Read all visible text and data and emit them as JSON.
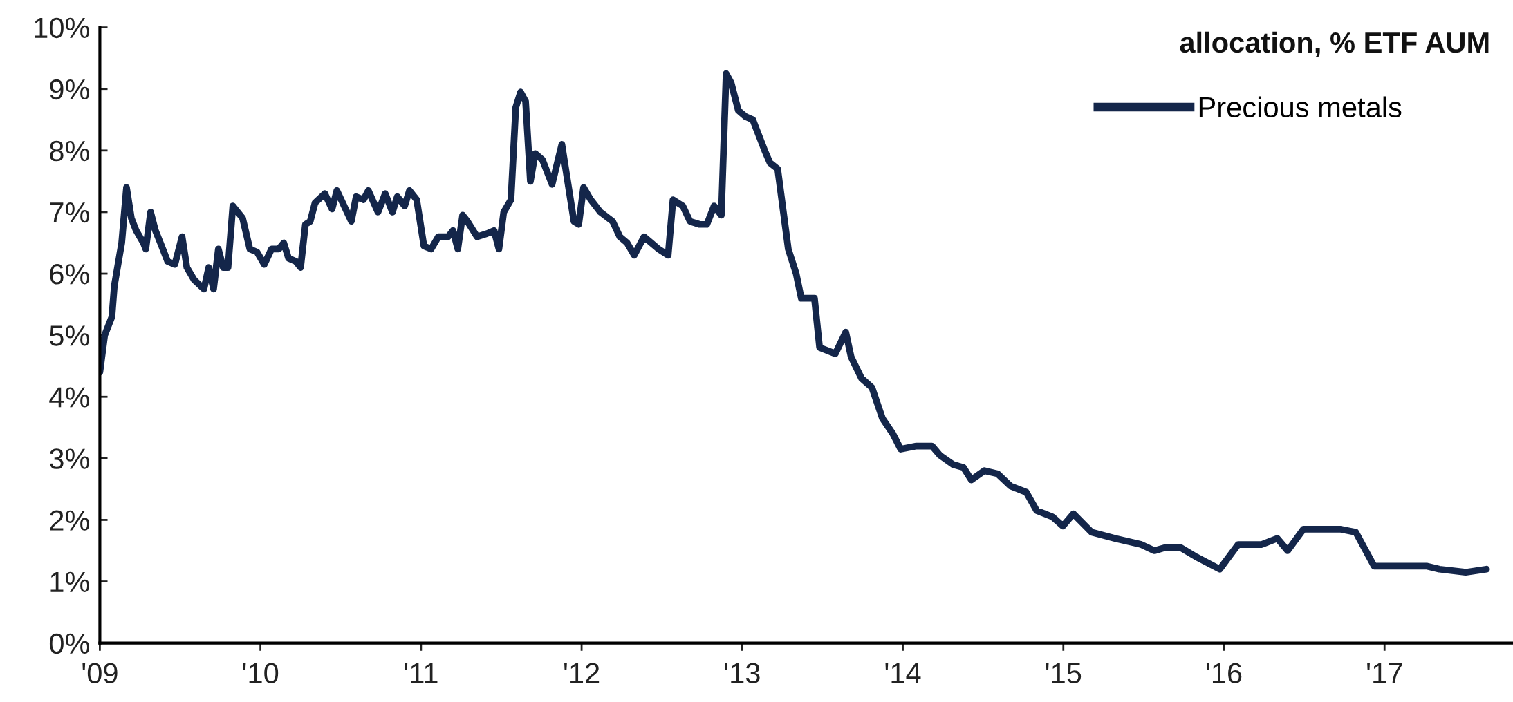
{
  "chart_data": {
    "type": "line",
    "title": "allocation, % ETF AUM",
    "xlim": [
      2009,
      2017.8
    ],
    "xticks": [
      {
        "value": 2009,
        "label": "'09"
      },
      {
        "value": 2010,
        "label": "'10"
      },
      {
        "value": 2011,
        "label": "'11"
      },
      {
        "value": 2012,
        "label": "'12"
      },
      {
        "value": 2013,
        "label": "'13"
      },
      {
        "value": 2014,
        "label": "'14"
      },
      {
        "value": 2015,
        "label": "'15"
      },
      {
        "value": 2016,
        "label": "'16"
      },
      {
        "value": 2017,
        "label": "'17"
      }
    ],
    "ylim": [
      0,
      10
    ],
    "yticks": [
      {
        "value": 0,
        "label": "0%"
      },
      {
        "value": 1,
        "label": "1%"
      },
      {
        "value": 2,
        "label": "2%"
      },
      {
        "value": 3,
        "label": "3%"
      },
      {
        "value": 4,
        "label": "4%"
      },
      {
        "value": 5,
        "label": "5%"
      },
      {
        "value": 6,
        "label": "6%"
      },
      {
        "value": 7,
        "label": "7%"
      },
      {
        "value": 8,
        "label": "8%"
      },
      {
        "value": 9,
        "label": "9%"
      },
      {
        "value": 10,
        "label": "10%"
      }
    ],
    "grid": false,
    "legend": "top right",
    "marker": "none",
    "line_style": "solid",
    "series": [
      {
        "name": "Precious metals",
        "color": "#14264a",
        "x": [
          2009.0,
          2009.03,
          2009.075,
          2009.09,
          2009.136,
          2009.166,
          2009.196,
          2009.226,
          2009.271,
          2009.286,
          2009.316,
          2009.346,
          2009.377,
          2009.422,
          2009.467,
          2009.512,
          2009.542,
          2009.587,
          2009.648,
          2009.678,
          2009.708,
          2009.738,
          2009.768,
          2009.798,
          2009.828,
          2009.889,
          2009.934,
          2009.979,
          2010.024,
          2010.069,
          2010.114,
          2010.145,
          2010.175,
          2010.22,
          2010.25,
          2010.28,
          2010.31,
          2010.34,
          2010.401,
          2010.446,
          2010.476,
          2010.521,
          2010.566,
          2010.596,
          2010.642,
          2010.672,
          2010.732,
          2010.777,
          2010.822,
          2010.852,
          2010.898,
          2010.928,
          2010.973,
          2011.018,
          2011.063,
          2011.108,
          2011.169,
          2011.199,
          2011.229,
          2011.259,
          2011.289,
          2011.349,
          2011.41,
          2011.455,
          2011.485,
          2011.515,
          2011.56,
          2011.59,
          2011.62,
          2011.651,
          2011.681,
          2011.711,
          2011.756,
          2011.816,
          2011.877,
          2011.907,
          2011.952,
          2011.982,
          2012.012,
          2012.057,
          2012.117,
          2012.193,
          2012.238,
          2012.283,
          2012.328,
          2012.389,
          2012.434,
          2012.479,
          2012.539,
          2012.569,
          2012.63,
          2012.675,
          2012.735,
          2012.78,
          2012.825,
          2012.87,
          2012.9,
          2012.931,
          2012.976,
          2013.021,
          2013.066,
          2013.14,
          2013.173,
          2013.221,
          2013.287,
          2013.336,
          2013.368,
          2013.45,
          2013.482,
          2013.58,
          2013.645,
          2013.678,
          2013.743,
          2013.808,
          2013.873,
          2013.938,
          2013.987,
          2014.085,
          2014.182,
          2014.231,
          2014.313,
          2014.378,
          2014.427,
          2014.508,
          2014.59,
          2014.671,
          2014.769,
          2014.834,
          2014.932,
          2014.997,
          2015.062,
          2015.176,
          2015.322,
          2015.485,
          2015.567,
          2015.632,
          2015.73,
          2015.827,
          2015.974,
          2016.088,
          2016.235,
          2016.332,
          2016.397,
          2016.495,
          2016.723,
          2016.821,
          2016.935,
          2017.049,
          2017.261,
          2017.342,
          2017.505,
          2017.635
        ],
        "values": [
          4.4,
          5.0,
          5.3,
          5.8,
          6.5,
          7.4,
          6.9,
          6.7,
          6.5,
          6.4,
          7.0,
          6.7,
          6.5,
          6.2,
          6.15,
          6.6,
          6.1,
          5.9,
          5.75,
          6.1,
          5.75,
          6.4,
          6.1,
          6.1,
          7.1,
          6.9,
          6.4,
          6.35,
          6.15,
          6.4,
          6.4,
          6.5,
          6.25,
          6.2,
          6.1,
          6.8,
          6.85,
          7.15,
          7.3,
          7.05,
          7.35,
          7.1,
          6.85,
          7.25,
          7.2,
          7.35,
          7.0,
          7.3,
          7.0,
          7.25,
          7.1,
          7.35,
          7.2,
          6.45,
          6.4,
          6.6,
          6.6,
          6.7,
          6.4,
          6.95,
          6.85,
          6.6,
          6.65,
          6.7,
          6.4,
          7.0,
          7.2,
          8.7,
          8.95,
          8.8,
          7.5,
          7.95,
          7.85,
          7.45,
          8.1,
          7.6,
          6.85,
          6.8,
          7.4,
          7.2,
          7.0,
          6.85,
          6.6,
          6.5,
          6.3,
          6.6,
          6.5,
          6.4,
          6.3,
          7.2,
          7.1,
          6.85,
          6.8,
          6.8,
          7.1,
          6.95,
          9.25,
          9.1,
          8.65,
          8.55,
          8.5,
          8.0,
          7.8,
          7.7,
          6.4,
          6.0,
          5.6,
          5.6,
          4.8,
          4.7,
          5.05,
          4.65,
          4.3,
          4.15,
          3.65,
          3.4,
          3.15,
          3.2,
          3.2,
          3.05,
          2.9,
          2.85,
          2.65,
          2.8,
          2.75,
          2.55,
          2.45,
          2.15,
          2.05,
          1.9,
          2.1,
          1.8,
          1.7,
          1.6,
          1.5,
          1.55,
          1.55,
          1.4,
          1.2,
          1.6,
          1.6,
          1.7,
          1.5,
          1.85,
          1.85,
          1.8,
          1.25,
          1.25,
          1.25,
          1.2,
          1.15,
          1.2
        ]
      }
    ]
  }
}
